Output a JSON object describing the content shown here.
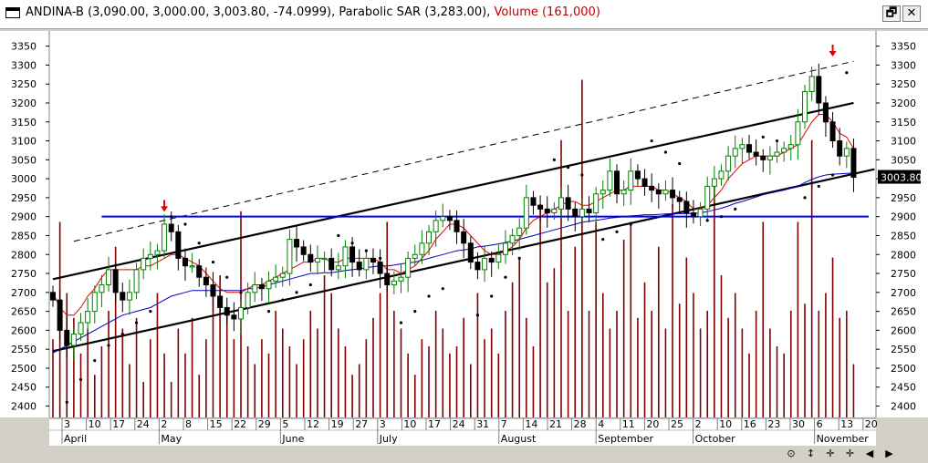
{
  "window": {
    "title_main": "ANDINA-B (3,090.00, 3,000.00, 3,003.80, -74.0999), Parabolic SAR (3,283.00),",
    "title_volume": "Volume (161,000)",
    "restore_glyph": "🗗",
    "close_glyph": "✕"
  },
  "colors": {
    "background": "#ffffff",
    "frame": "#d4d0c8",
    "up_candle": "#008000",
    "down_candle": "#000000",
    "sar": "#000000",
    "ma_short": "#e00000",
    "ma_long": "#0000c0",
    "volume": "#800000",
    "support_line": "#0000ff",
    "channel": "#000000",
    "signal_arrow": "#e00000"
  },
  "chart_data": {
    "type": "candlestick",
    "y_axis": {
      "min": 2370,
      "max": 3390,
      "ticks": [
        2400,
        2450,
        2500,
        2550,
        2600,
        2650,
        2700,
        2750,
        2800,
        2850,
        2900,
        2950,
        3000,
        3050,
        3100,
        3150,
        3200,
        3250,
        3300,
        3350
      ]
    },
    "last_price_label": "3003.80",
    "last_price": 3003.8,
    "support_level": 2900,
    "x_day_labels": [
      "3",
      "10",
      "17",
      "24",
      "2",
      "8",
      "15",
      "22",
      "29",
      "5",
      "12",
      "19",
      "27",
      "3",
      "10",
      "17",
      "24",
      "31",
      "7",
      "14",
      "21",
      "28",
      "4",
      "11",
      "20",
      "25",
      "2",
      "10",
      "16",
      "23",
      "30",
      "6",
      "13",
      "20"
    ],
    "x_month_labels": [
      "April",
      "May",
      "June",
      "July",
      "August",
      "September",
      "October",
      "November"
    ],
    "month_label_index": [
      0,
      4,
      9,
      13,
      18,
      22,
      26,
      31
    ],
    "closes": [
      2680,
      2600,
      2560,
      2590,
      2620,
      2650,
      2700,
      2720,
      2760,
      2700,
      2680,
      2700,
      2760,
      2790,
      2800,
      2810,
      2880,
      2860,
      2790,
      2770,
      2770,
      2740,
      2720,
      2690,
      2660,
      2640,
      2630,
      2660,
      2700,
      2720,
      2710,
      2730,
      2740,
      2750,
      2840,
      2820,
      2800,
      2780,
      2790,
      2790,
      2760,
      2770,
      2820,
      2780,
      2760,
      2790,
      2780,
      2750,
      2720,
      2730,
      2740,
      2790,
      2800,
      2830,
      2860,
      2890,
      2900,
      2890,
      2860,
      2830,
      2780,
      2760,
      2790,
      2780,
      2800,
      2830,
      2850,
      2870,
      2950,
      2930,
      2920,
      2910,
      2920,
      2950,
      2920,
      2900,
      2920,
      2910,
      2960,
      2970,
      3020,
      2960,
      2970,
      3020,
      3000,
      2980,
      2970,
      2960,
      2970,
      2950,
      2940,
      2910,
      2900,
      2920,
      2980,
      3000,
      3020,
      3060,
      3080,
      3090,
      3070,
      3060,
      3050,
      3060,
      3070,
      3080,
      3090,
      3150,
      3230,
      3270,
      3200,
      3150,
      3100,
      3060,
      3080,
      3003.8
    ],
    "sar_points": [
      [
        2,
        2410
      ],
      [
        4,
        2470
      ],
      [
        6,
        2520
      ],
      [
        8,
        2560
      ],
      [
        10,
        2590
      ],
      [
        12,
        2620
      ],
      [
        14,
        2650
      ],
      [
        17,
        2900
      ],
      [
        19,
        2880
      ],
      [
        21,
        2830
      ],
      [
        23,
        2780
      ],
      [
        25,
        2740
      ],
      [
        27,
        2700
      ],
      [
        31,
        2650
      ],
      [
        33,
        2680
      ],
      [
        35,
        2700
      ],
      [
        37,
        2720
      ],
      [
        41,
        2850
      ],
      [
        43,
        2830
      ],
      [
        45,
        2810
      ],
      [
        47,
        2790
      ],
      [
        50,
        2620
      ],
      [
        52,
        2650
      ],
      [
        54,
        2690
      ],
      [
        56,
        2710
      ],
      [
        61,
        2640
      ],
      [
        63,
        2690
      ],
      [
        65,
        2740
      ],
      [
        67,
        2790
      ],
      [
        72,
        3050
      ],
      [
        74,
        3030
      ],
      [
        76,
        3010
      ],
      [
        79,
        2840
      ],
      [
        81,
        2860
      ],
      [
        83,
        2880
      ],
      [
        86,
        3100
      ],
      [
        88,
        3070
      ],
      [
        90,
        3040
      ],
      [
        94,
        2890
      ],
      [
        96,
        2900
      ],
      [
        98,
        2920
      ],
      [
        102,
        3110
      ],
      [
        104,
        3100
      ],
      [
        108,
        2950
      ],
      [
        110,
        2980
      ],
      [
        112,
        3010
      ],
      [
        114,
        3280
      ]
    ],
    "ma_short": [
      2700,
      2660,
      2640,
      2640,
      2660,
      2690,
      2710,
      2740,
      2760,
      2760,
      2760,
      2760,
      2760,
      2770,
      2770,
      2780,
      2790,
      2800,
      2800,
      2790,
      2780,
      2770,
      2750,
      2730,
      2710,
      2700,
      2700,
      2700,
      2710,
      2720,
      2720,
      2730,
      2740,
      2750,
      2760,
      2770,
      2780,
      2780,
      2790,
      2790,
      2780,
      2780,
      2790,
      2790,
      2790,
      2790,
      2790,
      2780,
      2760,
      2760,
      2750,
      2760,
      2770,
      2790,
      2810,
      2840,
      2860,
      2880,
      2880,
      2870,
      2850,
      2830,
      2810,
      2800,
      2800,
      2810,
      2820,
      2840,
      2870,
      2890,
      2900,
      2910,
      2920,
      2930,
      2940,
      2940,
      2930,
      2930,
      2940,
      2950,
      2960,
      2970,
      2970,
      2980,
      2980,
      2980,
      2980,
      2970,
      2970,
      2960,
      2950,
      2940,
      2920,
      2920,
      2930,
      2950,
      2970,
      3000,
      3020,
      3040,
      3050,
      3060,
      3060,
      3060,
      3060,
      3070,
      3080,
      3090,
      3120,
      3150,
      3170,
      3170,
      3150,
      3120,
      3110,
      3080
    ],
    "ma_long": [
      2540,
      2550,
      2560,
      2570,
      2580,
      2590,
      2600,
      2610,
      2620,
      2630,
      2640,
      2645,
      2650,
      2655,
      2660,
      2670,
      2680,
      2690,
      2695,
      2700,
      2705,
      2705,
      2705,
      2705,
      2705,
      2705,
      2705,
      2705,
      2710,
      2710,
      2715,
      2720,
      2725,
      2730,
      2735,
      2740,
      2745,
      2750,
      2750,
      2752,
      2752,
      2755,
      2758,
      2760,
      2762,
      2765,
      2768,
      2770,
      2770,
      2772,
      2775,
      2778,
      2780,
      2785,
      2790,
      2795,
      2800,
      2805,
      2810,
      2812,
      2815,
      2820,
      2822,
      2825,
      2828,
      2832,
      2836,
      2840,
      2845,
      2850,
      2855,
      2860,
      2865,
      2870,
      2875,
      2880,
      2885,
      2888,
      2890,
      2893,
      2896,
      2898,
      2900,
      2902,
      2903,
      2905,
      2905,
      2906,
      2907,
      2908,
      2908,
      2908,
      2908,
      2910,
      2913,
      2918,
      2922,
      2928,
      2935,
      2940,
      2946,
      2952,
      2958,
      2962,
      2966,
      2970,
      2975,
      2980,
      2990,
      2998,
      3005,
      3010,
      3012,
      3013,
      3014,
      3015
    ],
    "volume_relative": [
      0.22,
      0.55,
      0.35,
      0.28,
      0.18,
      0.25,
      0.12,
      0.2,
      0.3,
      0.48,
      0.25,
      0.15,
      0.28,
      0.1,
      0.22,
      0.35,
      0.18,
      0.1,
      0.25,
      0.18,
      0.28,
      0.12,
      0.22,
      0.35,
      0.4,
      0.3,
      0.22,
      0.58,
      0.2,
      0.15,
      0.22,
      0.18,
      0.3,
      0.25,
      0.2,
      0.15,
      0.22,
      0.3,
      0.25,
      0.4,
      0.35,
      0.25,
      0.2,
      0.12,
      0.15,
      0.22,
      0.28,
      0.35,
      0.55,
      0.3,
      0.25,
      0.18,
      0.12,
      0.22,
      0.2,
      0.3,
      0.25,
      0.18,
      0.2,
      0.28,
      0.15,
      0.35,
      0.22,
      0.25,
      0.18,
      0.3,
      0.38,
      0.45,
      0.28,
      0.2,
      0.6,
      0.38,
      0.42,
      0.78,
      0.3,
      0.48,
      0.95,
      0.3,
      0.55,
      0.35,
      0.25,
      0.3,
      0.5,
      0.55,
      0.28,
      0.38,
      0.3,
      0.48,
      0.25,
      0.6,
      0.32,
      0.45,
      0.35,
      0.25,
      0.3,
      0.65,
      0.4,
      0.28,
      0.35,
      0.25,
      0.18,
      0.3,
      0.55,
      0.25,
      0.2,
      0.18,
      0.3,
      0.55,
      0.32,
      0.78,
      0.3,
      0.35,
      0.45,
      0.28,
      0.3,
      0.15
    ],
    "channel_lines": [
      {
        "style": "solid",
        "from": [
          0,
          2735
        ],
        "to": [
          115,
          3200
        ]
      },
      {
        "style": "solid",
        "from": [
          0,
          2545
        ],
        "to": [
          118,
          3025
        ]
      },
      {
        "style": "dashed",
        "from": [
          3,
          2835
        ],
        "to": [
          115,
          3310
        ]
      }
    ],
    "signal_arrows": [
      [
        16,
        2920
      ],
      [
        112,
        3330
      ]
    ]
  },
  "bottom_bar": {
    "icons": [
      "⊙",
      "↕",
      "✛",
      "✛",
      "◀",
      "▶"
    ]
  }
}
